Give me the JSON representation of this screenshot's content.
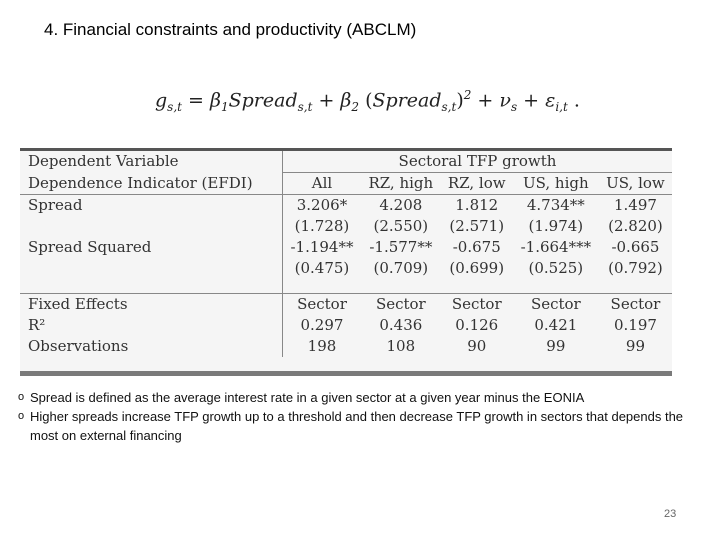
{
  "slide": {
    "title": "4. Financial constraints and productivity (ABCLM)",
    "page_number": "23"
  },
  "table": {
    "dependent_variable_label": "Dependent Variable",
    "dependent_variable_value": "Sectoral TFP growth",
    "indicator_label": "Dependence Indicator (EFDI)",
    "columns": [
      "All",
      "RZ, high",
      "RZ, low",
      "US, high",
      "US, low"
    ],
    "rows": [
      {
        "label": "Spread",
        "values": [
          "3.206*",
          "4.208",
          "1.812",
          "4.734**",
          "1.497"
        ]
      },
      {
        "label": "",
        "values": [
          "(1.728)",
          "(2.550)",
          "(2.571)",
          "(1.974)",
          "(2.820)"
        ]
      },
      {
        "label": "Spread Squared",
        "values": [
          "-1.194**",
          "-1.577**",
          "-0.675",
          "-1.664***",
          "-0.665"
        ]
      },
      {
        "label": "",
        "values": [
          "(0.475)",
          "(0.709)",
          "(0.699)",
          "(0.525)",
          "(0.792)"
        ]
      }
    ],
    "footer_rows": [
      {
        "label": "Fixed Effects",
        "values": [
          "Sector",
          "Sector",
          "Sector",
          "Sector",
          "Sector"
        ]
      },
      {
        "label": "R²",
        "values": [
          "0.297",
          "0.436",
          "0.126",
          "0.421",
          "0.197"
        ]
      },
      {
        "label": "Observations",
        "values": [
          "198",
          "108",
          "90",
          "99",
          "99"
        ]
      }
    ]
  },
  "bullets": [
    "Spread is defined as the average interest rate in a given sector at a given year minus the EONIA",
    "Higher spreads increase TFP growth up to a threshold and then decrease TFP growth in sectors that depends the most on external financing"
  ],
  "bullet_marker": "o"
}
